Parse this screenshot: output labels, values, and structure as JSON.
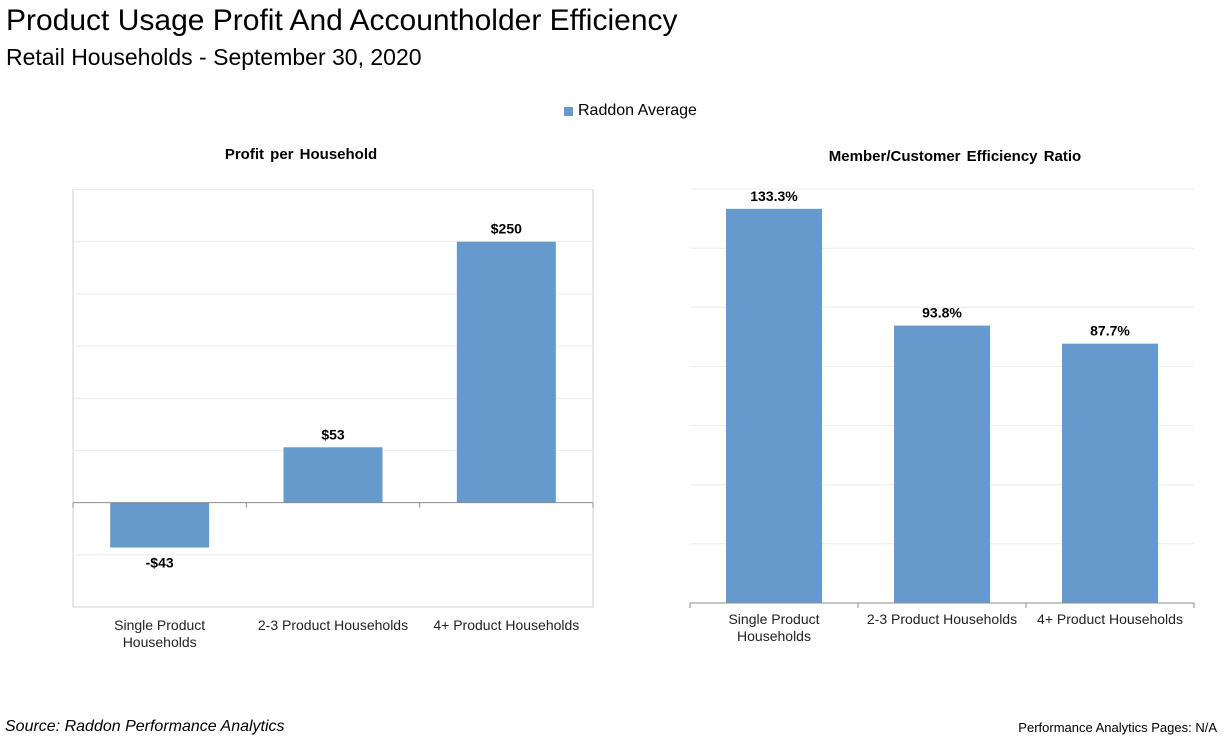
{
  "header": {
    "title": "Product Usage Profit And Accountholder Efficiency",
    "subtitle": "Retail Households - September 30, 2020"
  },
  "legend": {
    "label": "Raddon Average",
    "color": "#6699cc"
  },
  "footer": {
    "source": "Source: Raddon Performance Analytics",
    "pages": "Performance Analytics Pages: N/A"
  },
  "chart_data": [
    {
      "type": "bar",
      "title": "Profit per Household",
      "categories": [
        [
          "Single Product",
          "Households"
        ],
        [
          "2-3 Product Households"
        ],
        [
          "4+ Product Households"
        ]
      ],
      "series": [
        {
          "name": "Raddon Average",
          "values": [
            -43,
            53,
            250
          ]
        }
      ],
      "data_labels": [
        "-$43",
        "$53",
        "$250"
      ],
      "xlabel": "",
      "ylabel": "",
      "ylim": [
        -100,
        300
      ],
      "grid": true,
      "bar_color": "#6699cc"
    },
    {
      "type": "bar",
      "title": "Member/Customer  Efficiency  Ratio",
      "categories": [
        [
          "Single Product",
          "Households"
        ],
        [
          "2-3 Product Households"
        ],
        [
          "4+ Product Households"
        ]
      ],
      "series": [
        {
          "name": "Raddon Average",
          "values": [
            133.3,
            93.8,
            87.7
          ]
        }
      ],
      "data_labels": [
        "133.3%",
        "93.8%",
        "87.7%"
      ],
      "xlabel": "",
      "ylabel": "",
      "ylim": [
        0,
        140
      ],
      "grid": true,
      "bar_color": "#6699cc"
    }
  ]
}
